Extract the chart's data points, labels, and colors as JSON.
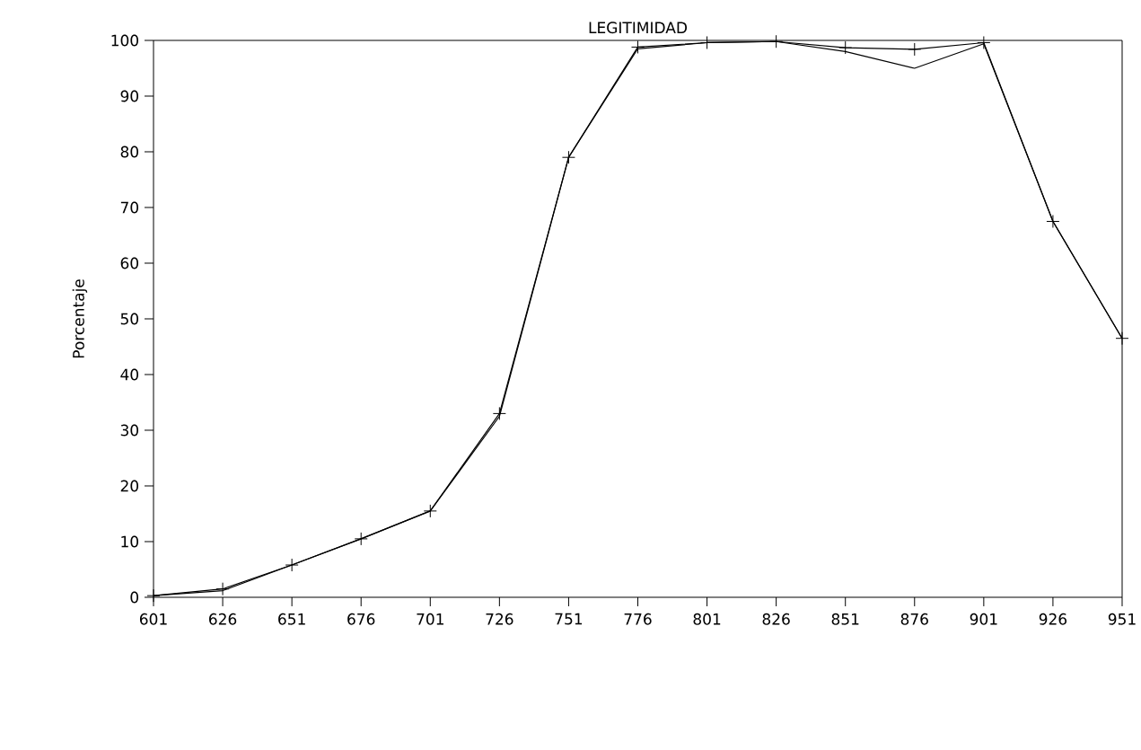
{
  "chart_data": {
    "type": "line",
    "title": "LEGITIMIDAD",
    "ylabel": "Porcentaje",
    "x": [
      601,
      626,
      651,
      676,
      701,
      726,
      751,
      776,
      801,
      826,
      851,
      876,
      901,
      926,
      951
    ],
    "series": [
      {
        "color": "#000000",
        "marker": "cross",
        "values": [
          0.3,
          1.5,
          5.8,
          10.5,
          15.5,
          33,
          79,
          98.8,
          99.6,
          99.8,
          98.7,
          98.4,
          99.6,
          67.5,
          46.5
        ]
      },
      {
        "color": "#000000",
        "marker": "none",
        "values": [
          0.3,
          1.2,
          5.8,
          10.5,
          15.5,
          32.5,
          79,
          98.5,
          99.6,
          99.8,
          98.0,
          95.0,
          99.4,
          67.5,
          46.5
        ]
      }
    ],
    "xlim": [
      601,
      951
    ],
    "xticks": [
      601,
      626,
      651,
      676,
      701,
      726,
      751,
      776,
      801,
      826,
      851,
      876,
      901,
      926,
      951
    ],
    "ylim": [
      0,
      100
    ],
    "yticks": [
      0,
      10,
      20,
      30,
      40,
      50,
      60,
      70,
      80,
      90,
      100
    ],
    "line_style": "solid"
  }
}
